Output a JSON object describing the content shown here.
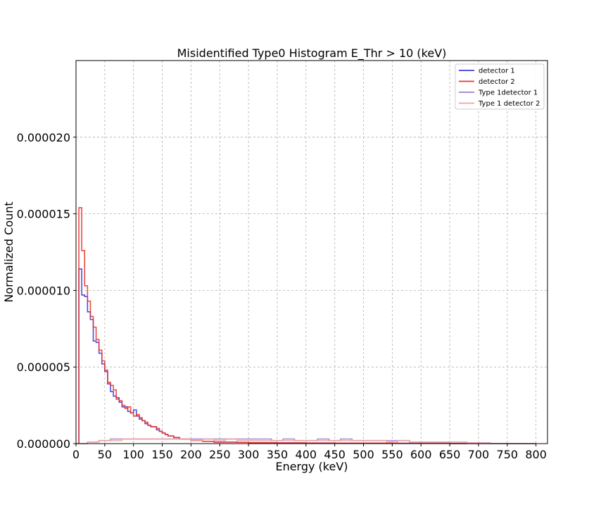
{
  "chart_data": {
    "type": "line",
    "style": "step-histogram",
    "title": "Misidentified Type0 Histogram E_Thr > 10 (keV)",
    "xlabel": "Energy (keV)",
    "ylabel": "Normalized Count",
    "xlim": [
      0,
      820
    ],
    "ylim": [
      0,
      2.5e-05
    ],
    "bin_width": 5,
    "xticks": [
      0,
      50,
      100,
      150,
      200,
      250,
      300,
      350,
      400,
      450,
      500,
      550,
      600,
      650,
      700,
      750,
      800
    ],
    "xtick_labels": [
      "0",
      "50",
      "100",
      "150",
      "200",
      "250",
      "300",
      "350",
      "400",
      "450",
      "500",
      "550",
      "600",
      "650",
      "700",
      "750",
      "800"
    ],
    "yticks": [
      0,
      5e-06,
      1e-05,
      1.5e-05,
      2e-05
    ],
    "ytick_labels": [
      "0.000000",
      "0.000005",
      "0.000010",
      "0.000015",
      "0.000020"
    ],
    "grid": true,
    "grid_style": "dashed",
    "legend_position": "top-right",
    "series": [
      {
        "name": "detector 1",
        "color": "#3b3bdc",
        "x": [
          5,
          10,
          15,
          20,
          25,
          30,
          35,
          40,
          45,
          50,
          55,
          60,
          65,
          70,
          75,
          80,
          85,
          90,
          95,
          100,
          105,
          110,
          115,
          120,
          125,
          130,
          135,
          140,
          145,
          150,
          155,
          160,
          165,
          170,
          175,
          180,
          190,
          200,
          220,
          240,
          260,
          280,
          300,
          350,
          400,
          450,
          500,
          550,
          600,
          650,
          700,
          750,
          795
        ],
        "y": [
          1.14e-05,
          9.7e-06,
          9.6e-06,
          8.6e-06,
          8.1e-06,
          6.7e-06,
          6.6e-06,
          5.9e-06,
          5.2e-06,
          4.7e-06,
          3.9e-06,
          3.4e-06,
          3.1e-06,
          3e-06,
          2.7e-06,
          2.4e-06,
          2.4e-06,
          2.1e-06,
          2e-06,
          2.2e-06,
          1.8e-06,
          1.6e-06,
          1.5e-06,
          1.3e-06,
          1.2e-06,
          1.1e-06,
          1.1e-06,
          9e-07,
          8e-07,
          7e-07,
          6e-07,
          5e-07,
          5e-07,
          4e-07,
          4e-07,
          3e-07,
          3e-07,
          2e-07,
          1.5e-07,
          1e-07,
          1e-07,
          8e-08,
          6e-08,
          5e-08,
          4e-08,
          3e-08,
          3e-08,
          2e-08,
          2e-08,
          1e-08,
          1e-08,
          0.0,
          0.0
        ]
      },
      {
        "name": "detector 2",
        "color": "#e8392f",
        "x": [
          5,
          10,
          15,
          20,
          25,
          30,
          35,
          40,
          45,
          50,
          55,
          60,
          65,
          70,
          75,
          80,
          85,
          90,
          95,
          100,
          105,
          110,
          115,
          120,
          125,
          130,
          135,
          140,
          145,
          150,
          155,
          160,
          165,
          170,
          175,
          180,
          190,
          200,
          220,
          240,
          260,
          280,
          300,
          350,
          400,
          450,
          500,
          550,
          600,
          650,
          700,
          750,
          795
        ],
        "y": [
          1.54e-05,
          1.26e-05,
          1.03e-05,
          9.3e-06,
          8.3e-06,
          7.6e-06,
          6.8e-06,
          6.1e-06,
          5.4e-06,
          4.8e-06,
          4e-06,
          3.8e-06,
          3.5e-06,
          2.9e-06,
          2.8e-06,
          2.5e-06,
          2.3e-06,
          2.4e-06,
          2e-06,
          1.8e-06,
          1.9e-06,
          1.7e-06,
          1.5e-06,
          1.4e-06,
          1.2e-06,
          1.1e-06,
          1.1e-06,
          1e-06,
          8e-07,
          7e-07,
          6e-07,
          5e-07,
          5e-07,
          4e-07,
          4e-07,
          3e-07,
          3e-07,
          2e-07,
          1.5e-07,
          1e-07,
          1e-07,
          8e-08,
          6e-08,
          5e-08,
          4e-08,
          3e-08,
          3e-08,
          2e-08,
          2e-08,
          1e-08,
          1e-08,
          0.0,
          0.0
        ]
      },
      {
        "name": "Type 1detector 1",
        "color": "#9a7fd0",
        "x": [
          0,
          20,
          40,
          60,
          80,
          100,
          120,
          140,
          160,
          180,
          200,
          220,
          240,
          260,
          280,
          300,
          320,
          340,
          360,
          380,
          400,
          420,
          440,
          460,
          480,
          500,
          520,
          540,
          560,
          580,
          600,
          620,
          640,
          660,
          680,
          700,
          720,
          740,
          760,
          780,
          795
        ],
        "y": [
          0.0,
          1e-07,
          2e-07,
          3e-07,
          3e-07,
          3e-07,
          3e-07,
          3e-07,
          3e-07,
          3e-07,
          3e-07,
          3e-07,
          3e-07,
          3e-07,
          3e-07,
          3e-07,
          3e-07,
          2e-07,
          3e-07,
          2e-07,
          2e-07,
          3e-07,
          2e-07,
          3e-07,
          2e-07,
          2e-07,
          2e-07,
          2e-07,
          2e-07,
          1e-07,
          1e-07,
          1e-07,
          1e-07,
          1e-07,
          5e-08,
          5e-08,
          0.0,
          0.0,
          0.0,
          0.0,
          0.0
        ]
      },
      {
        "name": "Type 1 detector 2",
        "color": "#f4a29a",
        "x": [
          0,
          20,
          40,
          60,
          80,
          100,
          120,
          140,
          160,
          180,
          200,
          220,
          240,
          260,
          280,
          300,
          320,
          340,
          360,
          380,
          400,
          420,
          440,
          460,
          480,
          500,
          520,
          540,
          560,
          580,
          600,
          620,
          640,
          660,
          680,
          700,
          720,
          740,
          760,
          780,
          795
        ],
        "y": [
          0.0,
          1e-07,
          2e-07,
          2e-07,
          3e-07,
          3e-07,
          3e-07,
          3e-07,
          3e-07,
          3e-07,
          2e-07,
          3e-07,
          2e-07,
          3e-07,
          2e-07,
          2e-07,
          2e-07,
          2e-07,
          2e-07,
          2e-07,
          2e-07,
          2e-07,
          2e-07,
          2e-07,
          2e-07,
          2e-07,
          2e-07,
          1e-07,
          2e-07,
          1e-07,
          1e-07,
          1e-07,
          1e-07,
          1e-07,
          5e-08,
          5e-08,
          0.0,
          0.0,
          0.0,
          0.0,
          0.0
        ]
      }
    ]
  }
}
